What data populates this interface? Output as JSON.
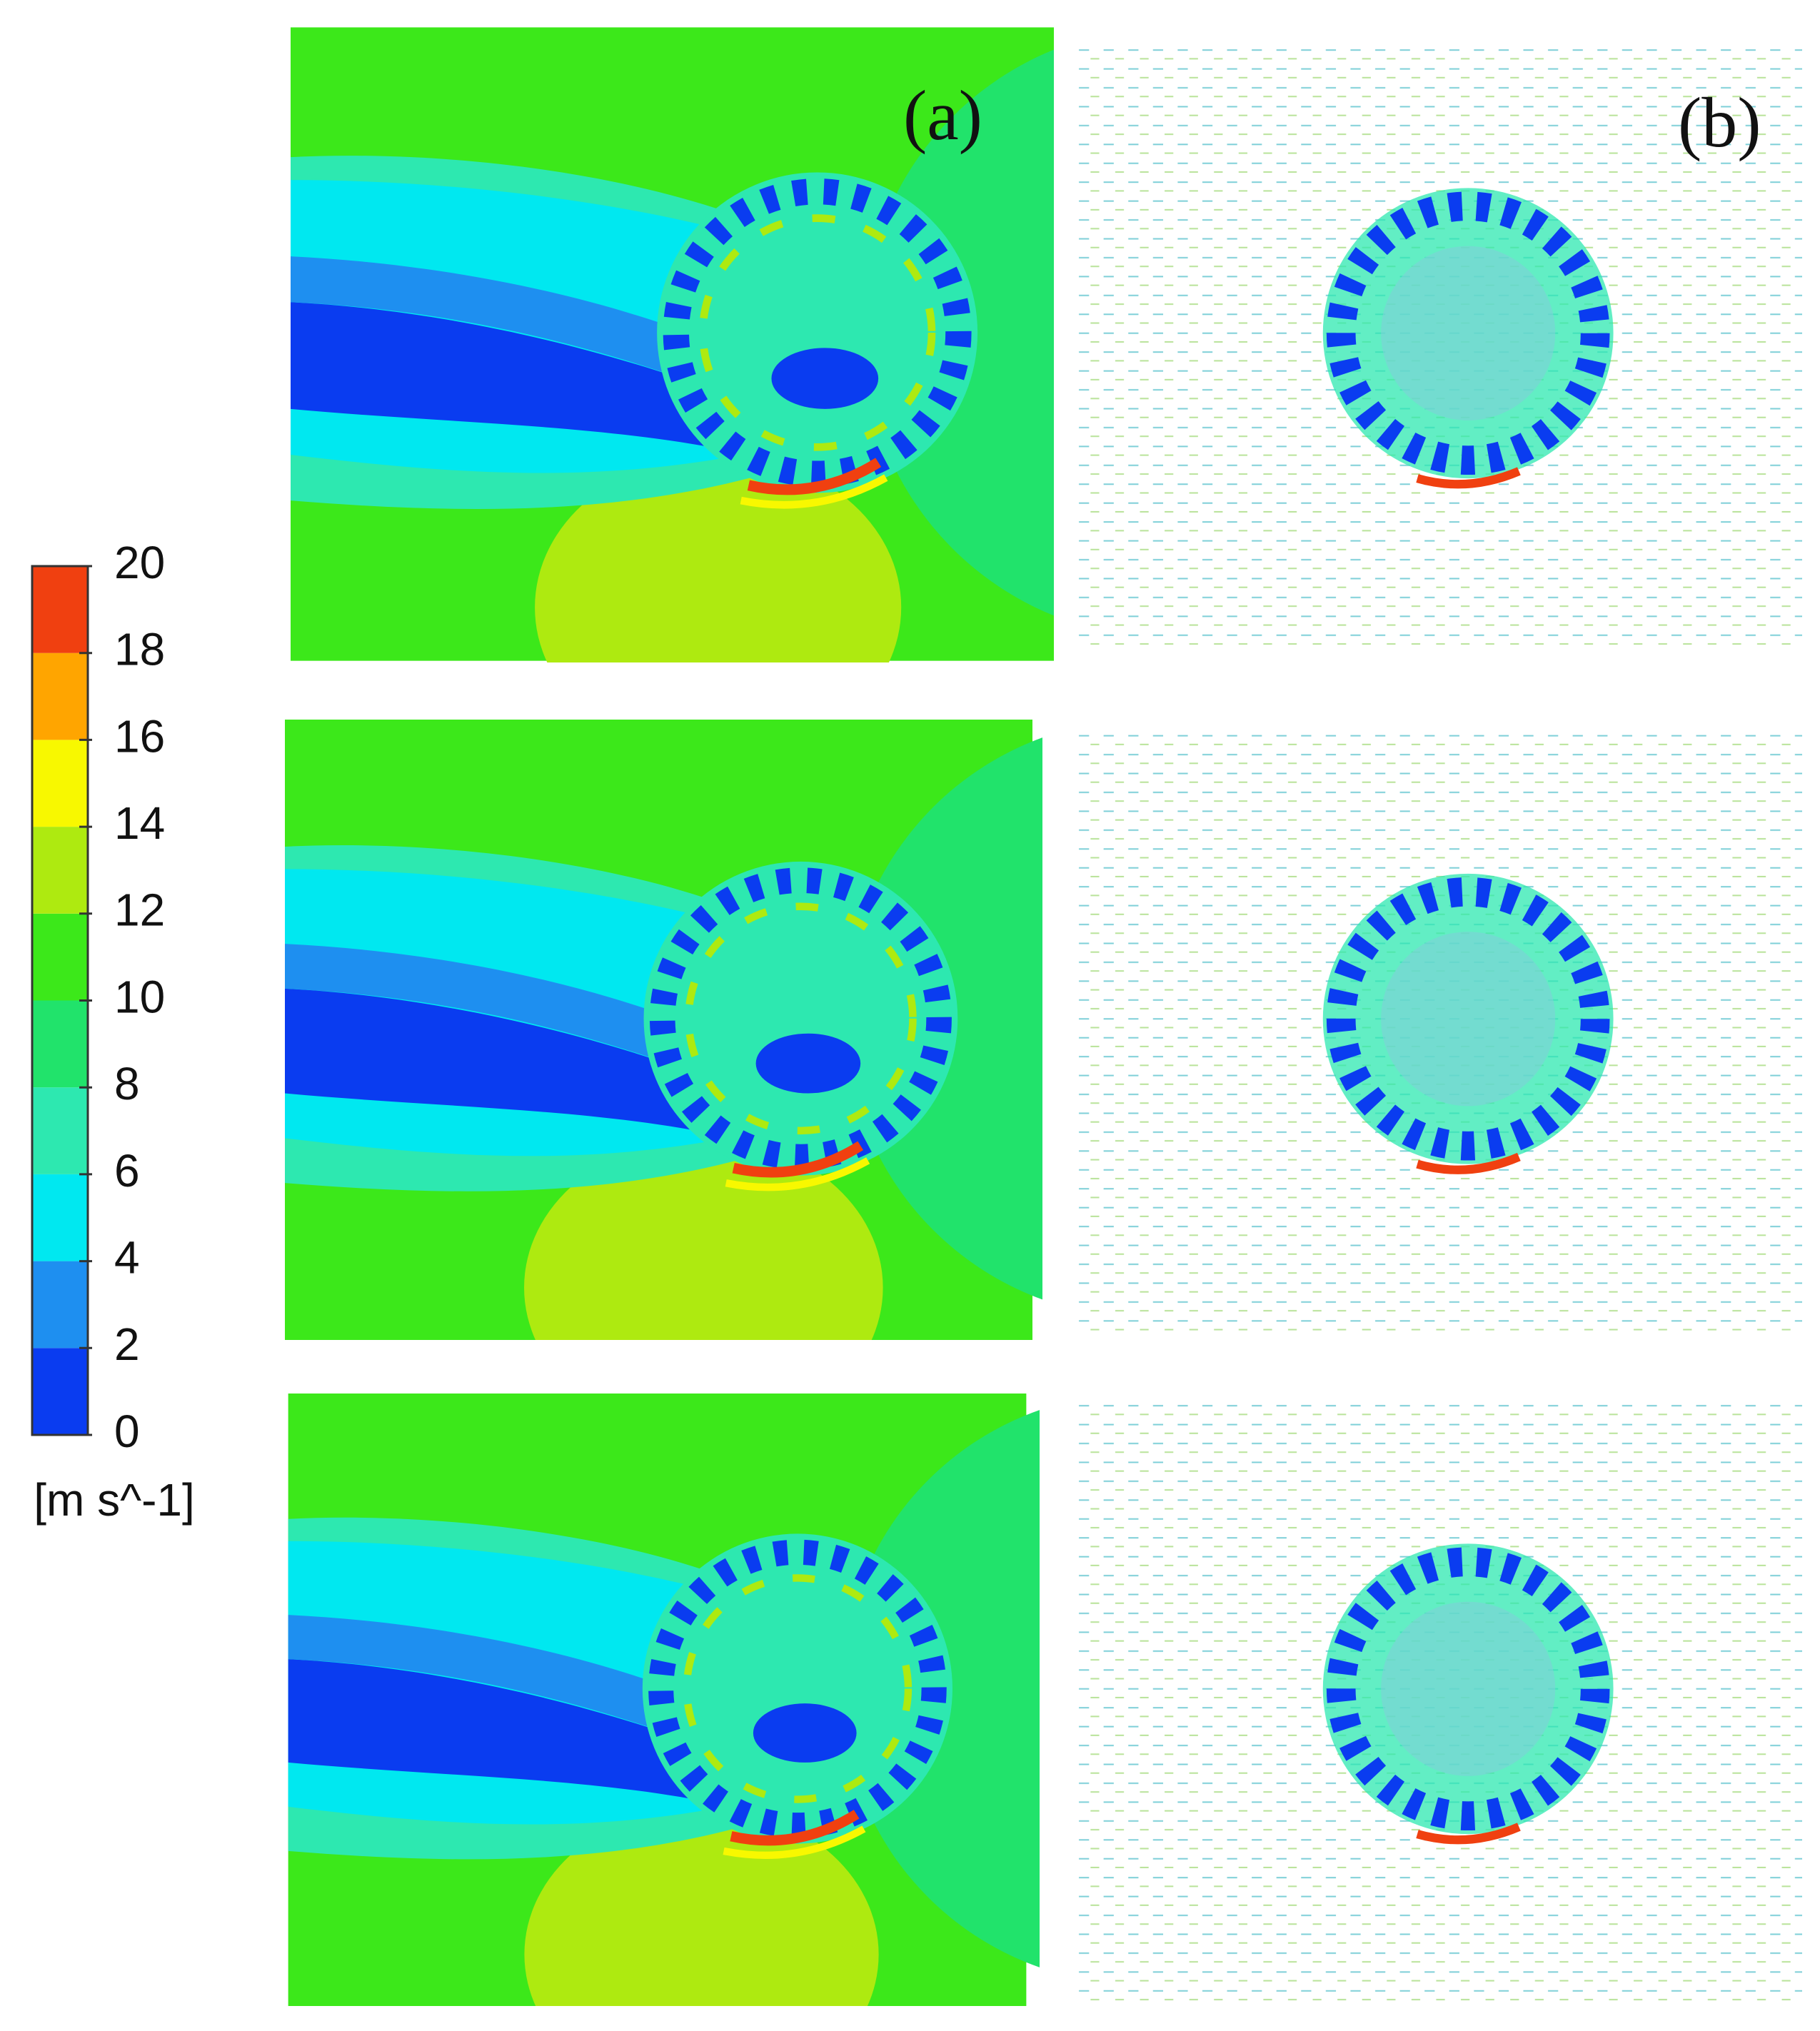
{
  "panels": {
    "a": "(a)",
    "b": "(b)"
  },
  "colorbar": {
    "unit": "[m s^-1]",
    "ticks": [
      0,
      2,
      4,
      6,
      8,
      10,
      12,
      14,
      16,
      18,
      20
    ],
    "colors": [
      "#0a3cf0",
      "#1e8ff0",
      "#00e8f0",
      "#2de8b0",
      "#21e36b",
      "#3ce81a",
      "#aeea10",
      "#f8f800",
      "#ffa500",
      "#f04010"
    ]
  }
}
